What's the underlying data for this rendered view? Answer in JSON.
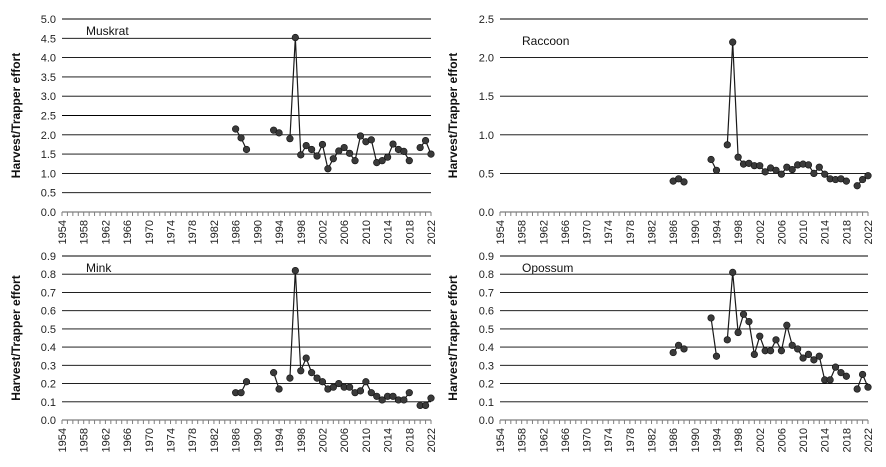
{
  "chart_data": [
    {
      "type": "line",
      "title": "Muskrat",
      "xlabel": "",
      "ylabel": "Harvest/Trapper effort",
      "ylim": [
        0,
        5.0
      ],
      "yticks": [
        "0.0",
        "0.5",
        "1.0",
        "1.5",
        "2.0",
        "2.5",
        "3.0",
        "3.5",
        "4.0",
        "4.5",
        "5.0"
      ],
      "xlim": [
        1954,
        2022
      ],
      "xticks": [
        "1954",
        "1958",
        "1962",
        "1966",
        "1970",
        "1974",
        "1978",
        "1982",
        "1986",
        "1990",
        "1994",
        "1998",
        "2002",
        "2006",
        "2010",
        "2014",
        "2018",
        "2022"
      ],
      "series": [
        {
          "name": "Muskrat",
          "points": [
            [
              1986,
              2.15
            ],
            [
              1987,
              1.92
            ],
            [
              1988,
              1.62
            ],
            [
              null,
              null
            ],
            [
              1993,
              2.12
            ],
            [
              1994,
              2.05
            ],
            [
              null,
              null
            ],
            [
              1996,
              1.9
            ],
            [
              1997,
              4.52
            ],
            [
              1998,
              1.48
            ],
            [
              1999,
              1.72
            ],
            [
              2000,
              1.62
            ],
            [
              2001,
              1.45
            ],
            [
              2002,
              1.75
            ],
            [
              2003,
              1.12
            ],
            [
              2004,
              1.38
            ],
            [
              2005,
              1.58
            ],
            [
              2006,
              1.67
            ],
            [
              2007,
              1.52
            ],
            [
              2008,
              1.33
            ],
            [
              2009,
              1.97
            ],
            [
              2010,
              1.82
            ],
            [
              2011,
              1.87
            ],
            [
              2012,
              1.28
            ],
            [
              2013,
              1.33
            ],
            [
              2014,
              1.42
            ],
            [
              2015,
              1.76
            ],
            [
              2016,
              1.62
            ],
            [
              2017,
              1.57
            ],
            [
              2018,
              1.33
            ],
            [
              null,
              null
            ],
            [
              2020,
              1.67
            ],
            [
              2021,
              1.85
            ],
            [
              2022,
              1.5
            ]
          ]
        }
      ]
    },
    {
      "type": "line",
      "title": "Raccoon",
      "xlabel": "",
      "ylabel": "Harvest/Trapper effort",
      "ylim": [
        0,
        2.5
      ],
      "yticks": [
        "0.0",
        "0.5",
        "1.0",
        "1.5",
        "2.0",
        "2.5"
      ],
      "xlim": [
        1954,
        2022
      ],
      "xticks": [
        "1954",
        "1958",
        "1962",
        "1966",
        "1970",
        "1974",
        "1978",
        "1982",
        "1986",
        "1990",
        "1994",
        "1998",
        "2002",
        "2006",
        "2010",
        "2014",
        "2018",
        "2022"
      ],
      "series": [
        {
          "name": "Raccoon",
          "points": [
            [
              1986,
              0.4
            ],
            [
              1987,
              0.43
            ],
            [
              1988,
              0.39
            ],
            [
              null,
              null
            ],
            [
              1993,
              0.68
            ],
            [
              1994,
              0.54
            ],
            [
              null,
              null
            ],
            [
              1996,
              0.87
            ],
            [
              1997,
              2.2
            ],
            [
              1998,
              0.71
            ],
            [
              1999,
              0.62
            ],
            [
              2000,
              0.63
            ],
            [
              2001,
              0.6
            ],
            [
              2002,
              0.6
            ],
            [
              2003,
              0.52
            ],
            [
              2004,
              0.57
            ],
            [
              2005,
              0.54
            ],
            [
              2006,
              0.49
            ],
            [
              2007,
              0.58
            ],
            [
              2008,
              0.55
            ],
            [
              2009,
              0.61
            ],
            [
              2010,
              0.62
            ],
            [
              2011,
              0.61
            ],
            [
              2012,
              0.5
            ],
            [
              2013,
              0.58
            ],
            [
              2014,
              0.49
            ],
            [
              2015,
              0.43
            ],
            [
              2016,
              0.42
            ],
            [
              2017,
              0.43
            ],
            [
              2018,
              0.4
            ],
            [
              null,
              null
            ],
            [
              2020,
              0.34
            ],
            [
              2021,
              0.42
            ],
            [
              2022,
              0.47
            ]
          ]
        }
      ]
    },
    {
      "type": "line",
      "title": "Mink",
      "xlabel": "",
      "ylabel": "Harvest/Trapper effort",
      "ylim": [
        0,
        0.9
      ],
      "yticks": [
        "0.0",
        "0.1",
        "0.2",
        "0.3",
        "0.4",
        "0.5",
        "0.6",
        "0.7",
        "0.8",
        "0.9"
      ],
      "xlim": [
        1954,
        2022
      ],
      "xticks": [
        "1954",
        "1958",
        "1962",
        "1966",
        "1970",
        "1974",
        "1978",
        "1982",
        "1986",
        "1990",
        "1994",
        "1998",
        "2002",
        "2006",
        "2010",
        "2014",
        "2018",
        "2022"
      ],
      "series": [
        {
          "name": "Mink",
          "points": [
            [
              1986,
              0.15
            ],
            [
              1987,
              0.15
            ],
            [
              1988,
              0.21
            ],
            [
              null,
              null
            ],
            [
              1993,
              0.26
            ],
            [
              1994,
              0.17
            ],
            [
              null,
              null
            ],
            [
              1996,
              0.23
            ],
            [
              1997,
              0.82
            ],
            [
              1998,
              0.27
            ],
            [
              1999,
              0.34
            ],
            [
              2000,
              0.26
            ],
            [
              2001,
              0.23
            ],
            [
              2002,
              0.21
            ],
            [
              2003,
              0.17
            ],
            [
              2004,
              0.18
            ],
            [
              2005,
              0.2
            ],
            [
              2006,
              0.18
            ],
            [
              2007,
              0.18
            ],
            [
              2008,
              0.15
            ],
            [
              2009,
              0.16
            ],
            [
              2010,
              0.21
            ],
            [
              2011,
              0.15
            ],
            [
              2012,
              0.13
            ],
            [
              2013,
              0.11
            ],
            [
              2014,
              0.13
            ],
            [
              2015,
              0.13
            ],
            [
              2016,
              0.11
            ],
            [
              2017,
              0.11
            ],
            [
              2018,
              0.15
            ],
            [
              null,
              null
            ],
            [
              2020,
              0.08
            ],
            [
              2021,
              0.08
            ],
            [
              2022,
              0.12
            ]
          ]
        }
      ]
    },
    {
      "type": "line",
      "title": "Opossum",
      "xlabel": "",
      "ylabel": "Harvest/Trapper effort",
      "ylim": [
        0,
        0.9
      ],
      "yticks": [
        "0.0",
        "0.1",
        "0.2",
        "0.3",
        "0.4",
        "0.5",
        "0.6",
        "0.7",
        "0.8",
        "0.9"
      ],
      "xlim": [
        1954,
        2022
      ],
      "xticks": [
        "1954",
        "1958",
        "1962",
        "1966",
        "1970",
        "1974",
        "1978",
        "1982",
        "1986",
        "1990",
        "1994",
        "1998",
        "2002",
        "2006",
        "2010",
        "2014",
        "2018",
        "2022"
      ],
      "series": [
        {
          "name": "Opossum",
          "points": [
            [
              1986,
              0.37
            ],
            [
              1987,
              0.41
            ],
            [
              1988,
              0.39
            ],
            [
              null,
              null
            ],
            [
              1993,
              0.56
            ],
            [
              1994,
              0.35
            ],
            [
              null,
              null
            ],
            [
              1996,
              0.44
            ],
            [
              1997,
              0.81
            ],
            [
              1998,
              0.48
            ],
            [
              1999,
              0.58
            ],
            [
              2000,
              0.54
            ],
            [
              2001,
              0.36
            ],
            [
              2002,
              0.46
            ],
            [
              2003,
              0.38
            ],
            [
              2004,
              0.38
            ],
            [
              2005,
              0.44
            ],
            [
              2006,
              0.38
            ],
            [
              2007,
              0.52
            ],
            [
              2008,
              0.41
            ],
            [
              2009,
              0.39
            ],
            [
              2010,
              0.34
            ],
            [
              2011,
              0.36
            ],
            [
              2012,
              0.33
            ],
            [
              2013,
              0.35
            ],
            [
              2014,
              0.22
            ],
            [
              2015,
              0.22
            ],
            [
              2016,
              0.29
            ],
            [
              2017,
              0.26
            ],
            [
              2018,
              0.24
            ],
            [
              null,
              null
            ],
            [
              2020,
              0.17
            ],
            [
              2021,
              0.25
            ],
            [
              2022,
              0.18
            ]
          ]
        }
      ]
    }
  ],
  "colors": {
    "line": "#1a1a1a",
    "marker": "#3a3a3a",
    "grid": "#000000",
    "axis": "#7f7f7f"
  }
}
